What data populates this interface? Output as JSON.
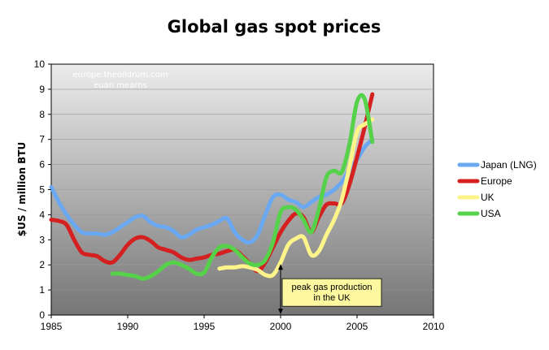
{
  "chart_data": {
    "type": "line",
    "title": "Global gas spot prices",
    "xlabel": "",
    "ylabel": "$US / million BTU",
    "xlim": [
      1985,
      2010
    ],
    "ylim": [
      0,
      10
    ],
    "x_ticks": [
      "1985",
      "1990",
      "1995",
      "2000",
      "2005",
      "2010"
    ],
    "y_ticks": [
      "0",
      "1",
      "2",
      "3",
      "4",
      "5",
      "6",
      "7",
      "8",
      "9",
      "10"
    ],
    "grid": true,
    "legend_position": "right",
    "watermark": [
      "europe.theoildrum.com",
      "euan mearns"
    ],
    "annotation": {
      "text": [
        "peak gas production",
        "in the UK"
      ],
      "x": 2000
    },
    "series": [
      {
        "name": "Japan (LNG)",
        "color": "#6aa8f2",
        "x": [
          1985,
          1985.5,
          1986,
          1986.5,
          1987,
          1987.5,
          1988,
          1988.5,
          1989,
          1989.5,
          1990,
          1990.5,
          1991,
          1991.5,
          1992,
          1992.5,
          1993,
          1993.5,
          1994,
          1994.5,
          1995,
          1995.5,
          1996,
          1996.5,
          1997,
          1997.5,
          1998,
          1998.5,
          1999,
          1999.5,
          2000,
          2000.5,
          2001,
          2001.5,
          2002,
          2002.5,
          2003,
          2003.5,
          2004,
          2004.5,
          2005,
          2005.5,
          2006
        ],
        "y": [
          5.1,
          4.5,
          4.0,
          3.6,
          3.3,
          3.25,
          3.25,
          3.2,
          3.3,
          3.5,
          3.7,
          3.9,
          3.95,
          3.7,
          3.55,
          3.5,
          3.35,
          3.1,
          3.2,
          3.4,
          3.5,
          3.6,
          3.75,
          3.85,
          3.3,
          3.0,
          2.9,
          3.2,
          4.0,
          4.7,
          4.8,
          4.6,
          4.5,
          4.3,
          4.5,
          4.7,
          4.8,
          5.0,
          5.3,
          5.8,
          6.2,
          6.7,
          7.0
        ]
      },
      {
        "name": "Europe",
        "color": "#d42020",
        "x": [
          1985,
          1985.5,
          1986,
          1986.5,
          1987,
          1987.5,
          1988,
          1988.5,
          1989,
          1989.5,
          1990,
          1990.5,
          1991,
          1991.5,
          1992,
          1992.5,
          1993,
          1993.5,
          1994,
          1994.5,
          1995,
          1995.5,
          1996,
          1996.5,
          1997,
          1997.5,
          1998,
          1998.5,
          1999,
          1999.5,
          2000,
          2000.5,
          2001,
          2001.5,
          2002,
          2002.5,
          2003,
          2003.5,
          2004,
          2004.5,
          2005,
          2005.5,
          2006
        ],
        "y": [
          3.8,
          3.75,
          3.6,
          3.0,
          2.5,
          2.4,
          2.35,
          2.15,
          2.1,
          2.4,
          2.8,
          3.05,
          3.1,
          2.95,
          2.7,
          2.6,
          2.5,
          2.3,
          2.2,
          2.25,
          2.3,
          2.4,
          2.45,
          2.55,
          2.6,
          2.35,
          2.05,
          1.75,
          2.1,
          2.7,
          3.3,
          3.75,
          4.05,
          3.9,
          3.3,
          3.9,
          4.4,
          4.45,
          4.45,
          5.2,
          6.3,
          7.5,
          8.8
        ]
      },
      {
        "name": "UK",
        "color": "#fdf58a",
        "x": [
          1996,
          1996.5,
          1997,
          1997.5,
          1998,
          1998.5,
          1999,
          1999.5,
          2000,
          2000.5,
          2001,
          2001.5,
          2002,
          2002.5,
          2003,
          2003.5,
          2004,
          2004.5,
          2005,
          2005.5,
          2006
        ],
        "y": [
          1.85,
          1.9,
          1.9,
          1.95,
          1.9,
          1.8,
          1.6,
          1.6,
          2.1,
          2.8,
          3.05,
          3.1,
          2.4,
          2.55,
          3.2,
          3.8,
          4.6,
          5.9,
          7.3,
          7.6,
          7.8
        ]
      },
      {
        "name": "USA",
        "color": "#55d24a",
        "x": [
          1989,
          1989.5,
          1990,
          1990.5,
          1991,
          1991.5,
          1992,
          1992.5,
          1993,
          1993.5,
          1994,
          1994.5,
          1995,
          1995.5,
          1996,
          1996.5,
          1997,
          1997.5,
          1998,
          1998.5,
          1999,
          1999.5,
          2000,
          2000.5,
          2001,
          2001.5,
          2002,
          2002.5,
          2003,
          2003.5,
          2004,
          2004.5,
          2005,
          2005.5,
          2006
        ],
        "y": [
          1.65,
          1.65,
          1.6,
          1.55,
          1.45,
          1.55,
          1.75,
          2.0,
          2.1,
          2.0,
          1.85,
          1.65,
          1.7,
          2.3,
          2.7,
          2.75,
          2.6,
          2.3,
          2.05,
          2.0,
          2.2,
          2.9,
          4.1,
          4.3,
          4.2,
          3.8,
          3.3,
          4.2,
          5.5,
          5.75,
          5.7,
          6.8,
          8.5,
          8.6,
          6.9
        ]
      }
    ]
  }
}
